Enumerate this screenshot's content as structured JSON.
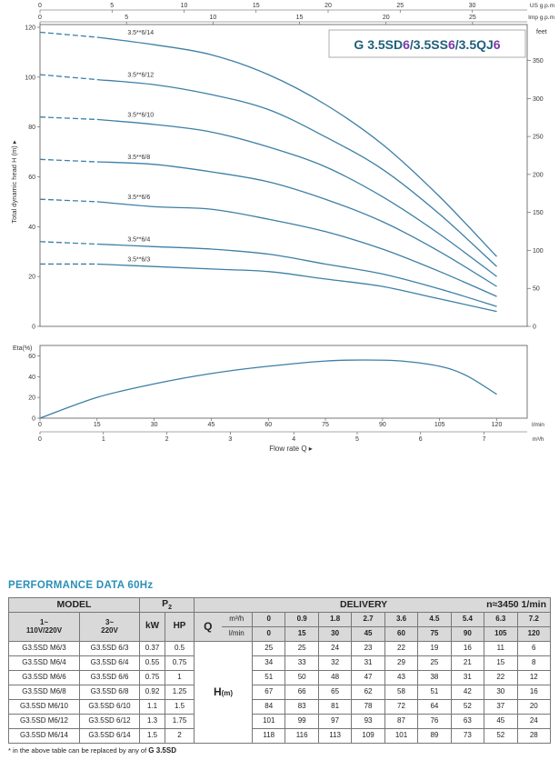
{
  "chart_data": [
    {
      "type": "line",
      "title": "G 3.5SD6/3.5SS6/3.5QJ6",
      "title_parts": [
        {
          "text": "G 3.5SD",
          "color": "#1f5f7a"
        },
        {
          "text": "6",
          "color": "#7b3aa8"
        },
        {
          "text": "/3.5SS",
          "color": "#1f5f7a"
        },
        {
          "text": "6",
          "color": "#7b3aa8"
        },
        {
          "text": "/3.5QJ",
          "color": "#1f5f7a"
        },
        {
          "text": "6",
          "color": "#7b3aa8"
        }
      ],
      "ylabel": "Total dynamic head  H (m)",
      "ylim": [
        0,
        120
      ],
      "yticks": [
        0,
        20,
        40,
        60,
        80,
        100,
        120
      ],
      "xlim_lmin": [
        0,
        128
      ],
      "feet_label": "feet",
      "feet_ticks": [
        0,
        50,
        100,
        150,
        200,
        250,
        300,
        350
      ],
      "us_gpm_label": "US g.p.m",
      "us_gpm_ticks": [
        0,
        5,
        10,
        15,
        20,
        25,
        30
      ],
      "imp_gpm_label": "Imp g.p.m",
      "imp_gpm_ticks": [
        0,
        5,
        10,
        15,
        20,
        25
      ],
      "dashed_until_lmin": 15,
      "grid": false,
      "line_color": "#3c7fa6",
      "series": [
        {
          "name": "3.5**6/14",
          "x": [
            0,
            15,
            30,
            45,
            60,
            75,
            90,
            105,
            120
          ],
          "y": [
            118,
            116,
            113,
            109,
            101,
            89,
            73,
            52,
            28
          ]
        },
        {
          "name": "3.5**6/12",
          "x": [
            0,
            15,
            30,
            45,
            60,
            75,
            90,
            105,
            120
          ],
          "y": [
            101,
            99,
            97,
            93,
            87,
            76,
            63,
            45,
            24
          ]
        },
        {
          "name": "3.5**6/10",
          "x": [
            0,
            15,
            30,
            45,
            60,
            75,
            90,
            105,
            120
          ],
          "y": [
            84,
            83,
            81,
            78,
            72,
            64,
            52,
            37,
            20
          ]
        },
        {
          "name": "3.5**6/8",
          "x": [
            0,
            15,
            30,
            45,
            60,
            75,
            90,
            105,
            120
          ],
          "y": [
            67,
            66,
            65,
            62,
            58,
            51,
            42,
            30,
            16
          ]
        },
        {
          "name": "3.5**6/6",
          "x": [
            0,
            15,
            30,
            45,
            60,
            75,
            90,
            105,
            120
          ],
          "y": [
            51,
            50,
            48,
            47,
            43,
            38,
            31,
            22,
            12
          ]
        },
        {
          "name": "3.5**6/4",
          "x": [
            0,
            15,
            30,
            45,
            60,
            75,
            90,
            105,
            120
          ],
          "y": [
            34,
            33,
            32,
            31,
            29,
            25,
            21,
            15,
            8
          ]
        },
        {
          "name": "3.5**6/3",
          "x": [
            0,
            15,
            30,
            45,
            60,
            75,
            90,
            105,
            120
          ],
          "y": [
            25,
            25,
            24,
            23,
            22,
            19,
            16,
            11,
            6
          ]
        }
      ]
    },
    {
      "type": "line",
      "ylabel": "Eta(%)",
      "ylim": [
        0,
        70
      ],
      "yticks": [
        0,
        20,
        40,
        60
      ],
      "xlim_lmin": [
        0,
        128
      ],
      "lmin_label": "l/min",
      "lmin_ticks": [
        0,
        15,
        30,
        45,
        60,
        75,
        90,
        105,
        120
      ],
      "m3h_label": "m³/h",
      "m3h_ticks": [
        0,
        1,
        2,
        3,
        4,
        5,
        6,
        7
      ],
      "xlabel": "Flow rate  Q",
      "series": [
        {
          "name": "Eta",
          "x": [
            0,
            15,
            30,
            45,
            60,
            75,
            85,
            95,
            105,
            112,
            120
          ],
          "y": [
            0,
            20,
            33,
            43,
            50,
            55,
            56,
            55,
            50,
            41,
            23
          ]
        }
      ]
    }
  ],
  "performance": {
    "title": "PERFORMANCE  DATA  60Hz",
    "model_header": "MODEL",
    "p2_header": "P",
    "p2_sub": "2",
    "delivery_header": "DELIVERY",
    "speed": "n≈3450 1/min",
    "col_1phase": "1~",
    "col_1phase_v": "110V/220V",
    "col_3phase": "3~",
    "col_3phase_v": "220V",
    "kw": "kW",
    "hp": "HP",
    "q": "Q",
    "unit_m3h": "m³/h",
    "unit_lmin": "l/min",
    "q_m3h": [
      "0",
      "0.9",
      "1.8",
      "2.7",
      "3.6",
      "4.5",
      "5.4",
      "6.3",
      "7.2"
    ],
    "q_lmin": [
      "0",
      "15",
      "30",
      "45",
      "60",
      "75",
      "90",
      "105",
      "120"
    ],
    "h_label": "H",
    "h_unit": "(m)",
    "rows": [
      {
        "m1": "G3.5SD M6/3",
        "m3": "G3.5SD 6/3",
        "kw": "0.37",
        "hp": "0.5",
        "h": [
          "25",
          "25",
          "24",
          "23",
          "22",
          "19",
          "16",
          "11",
          "6"
        ]
      },
      {
        "m1": "G3.5SD M6/4",
        "m3": "G3.5SD 6/4",
        "kw": "0.55",
        "hp": "0.75",
        "h": [
          "34",
          "33",
          "32",
          "31",
          "29",
          "25",
          "21",
          "15",
          "8"
        ]
      },
      {
        "m1": "G3.5SD M6/6",
        "m3": "G3.5SD 6/6",
        "kw": "0.75",
        "hp": "1",
        "h": [
          "51",
          "50",
          "48",
          "47",
          "43",
          "38",
          "31",
          "22",
          "12"
        ]
      },
      {
        "m1": "G3.5SD M6/8",
        "m3": "G3.5SD 6/8",
        "kw": "0.92",
        "hp": "1.25",
        "h": [
          "67",
          "66",
          "65",
          "62",
          "58",
          "51",
          "42",
          "30",
          "16"
        ]
      },
      {
        "m1": "G3.5SD M6/10",
        "m3": "G3.5SD 6/10",
        "kw": "1.1",
        "hp": "1.5",
        "h": [
          "84",
          "83",
          "81",
          "78",
          "72",
          "64",
          "52",
          "37",
          "20"
        ]
      },
      {
        "m1": "G3.5SD M6/12",
        "m3": "G3.5SD 6/12",
        "kw": "1.3",
        "hp": "1.75",
        "h": [
          "101",
          "99",
          "97",
          "93",
          "87",
          "76",
          "63",
          "45",
          "24"
        ]
      },
      {
        "m1": "G3.5SD M6/14",
        "m3": "G3.5SD 6/14",
        "kw": "1.5",
        "hp": "2",
        "h": [
          "118",
          "116",
          "113",
          "109",
          "101",
          "89",
          "73",
          "52",
          "28"
        ]
      }
    ],
    "note_prefix": "* in the above table can be replaced by any of",
    "note_bold": "G 3.5SD"
  }
}
